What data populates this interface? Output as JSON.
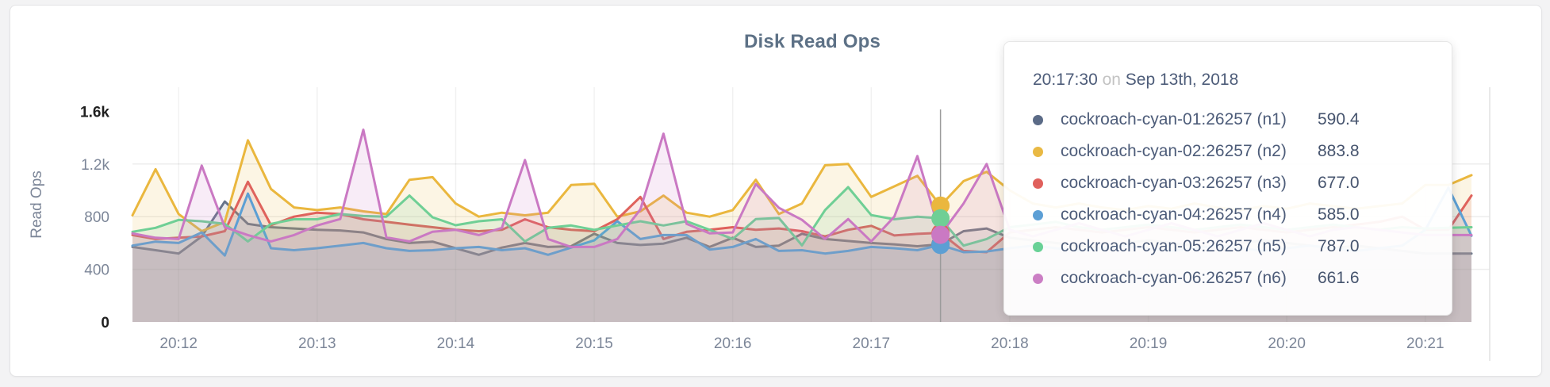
{
  "page": {
    "title": "Disk Read Ops"
  },
  "y_axis": {
    "label": "Read Ops",
    "ticks": [
      {
        "v": 0,
        "label": "0",
        "strong": true
      },
      {
        "v": 400,
        "label": "400",
        "strong": false
      },
      {
        "v": 800,
        "label": "800",
        "strong": false
      },
      {
        "v": 1200,
        "label": "1.2k",
        "strong": false
      },
      {
        "v": 1600,
        "label": "1.6k",
        "strong": true
      }
    ],
    "gridline_values": [
      400,
      800,
      1200
    ]
  },
  "x_axis": {
    "labels": [
      {
        "index": 2,
        "label": "20:12"
      },
      {
        "index": 8,
        "label": "20:13"
      },
      {
        "index": 14,
        "label": "20:14"
      },
      {
        "index": 20,
        "label": "20:15"
      },
      {
        "index": 26,
        "label": "20:16"
      },
      {
        "index": 32,
        "label": "20:17"
      },
      {
        "index": 38,
        "label": "20:18"
      },
      {
        "index": 44,
        "label": "20:19"
      },
      {
        "index": 50,
        "label": "20:20"
      },
      {
        "index": 56,
        "label": "20:21"
      }
    ]
  },
  "chart_data": {
    "type": "area",
    "title": "Disk Read Ops",
    "ylabel": "Read Ops",
    "ylim": [
      0,
      1783
    ],
    "grid": true,
    "start_time": "20:11:40",
    "interval_seconds": 10,
    "x_count": 59,
    "hover_index": 35,
    "hover_time": "20:17:30",
    "series": [
      {
        "id": "n1",
        "name": "cockroach-cyan-01:26257 (n1)",
        "color": "#67748a",
        "values": [
          570,
          545,
          520,
          650,
          915,
          745,
          720,
          710,
          700,
          695,
          680,
          630,
          600,
          610,
          560,
          510,
          565,
          600,
          570,
          575,
          670,
          600,
          585,
          595,
          640,
          570,
          640,
          570,
          580,
          670,
          630,
          615,
          600,
          590,
          575,
          590.4,
          690,
          710,
          640,
          620,
          600,
          580,
          560,
          600,
          620,
          600,
          580,
          560,
          600,
          620,
          600,
          580,
          560,
          580,
          560,
          540,
          520,
          520,
          520
        ]
      },
      {
        "id": "n2",
        "name": "cockroach-cyan-02:26257 (n2)",
        "color": "#eab73e",
        "values": [
          810,
          1160,
          820,
          690,
          760,
          1380,
          1010,
          870,
          850,
          870,
          840,
          820,
          1080,
          1100,
          900,
          800,
          830,
          810,
          830,
          1040,
          1050,
          800,
          840,
          960,
          830,
          800,
          850,
          1080,
          820,
          900,
          1190,
          1200,
          950,
          1030,
          1110,
          883.8,
          1070,
          1140,
          1000,
          900,
          870,
          900,
          870,
          850,
          880,
          860,
          900,
          870,
          850,
          880,
          860,
          900,
          880,
          860,
          880,
          900,
          1040,
          1040,
          1115
        ]
      },
      {
        "id": "n3",
        "name": "cockroach-cyan-03:26257 (n3)",
        "color": "#df625c",
        "values": [
          660,
          630,
          640,
          650,
          690,
          1065,
          735,
          800,
          830,
          820,
          780,
          760,
          740,
          720,
          700,
          690,
          700,
          780,
          720,
          700,
          690,
          780,
          950,
          630,
          685,
          700,
          720,
          700,
          710,
          690,
          650,
          700,
          730,
          657,
          669,
          677,
          540,
          530,
          680,
          700,
          720,
          700,
          680,
          700,
          720,
          700,
          680,
          700,
          720,
          700,
          680,
          700,
          720,
          740,
          760,
          800,
          700,
          700,
          960
        ]
      },
      {
        "id": "n4",
        "name": "cockroach-cyan-04:26257 (n4)",
        "color": "#5c9fd4",
        "values": [
          580,
          610,
          600,
          680,
          505,
          975,
          560,
          545,
          560,
          580,
          600,
          560,
          540,
          545,
          560,
          570,
          545,
          560,
          510,
          565,
          620,
          765,
          630,
          660,
          660,
          550,
          570,
          630,
          540,
          545,
          520,
          540,
          570,
          560,
          545,
          585,
          530,
          535,
          560,
          580,
          560,
          540,
          560,
          580,
          560,
          540,
          560,
          580,
          560,
          540,
          560,
          580,
          560,
          540,
          560,
          580,
          700,
          1020,
          655
        ]
      },
      {
        "id": "n5",
        "name": "cockroach-cyan-05:26257 (n5)",
        "color": "#6fcf95",
        "values": [
          685,
          715,
          775,
          765,
          745,
          612,
          745,
          780,
          780,
          820,
          805,
          800,
          960,
          795,
          735,
          765,
          780,
          612,
          715,
          733,
          700,
          733,
          765,
          733,
          765,
          700,
          630,
          782,
          790,
          582,
          850,
          1024,
          812,
          780,
          800,
          787,
          580,
          630,
          720,
          740,
          760,
          720,
          700,
          720,
          740,
          720,
          700,
          720,
          740,
          720,
          700,
          720,
          740,
          720,
          700,
          720,
          710,
          715,
          720
        ]
      },
      {
        "id": "n6",
        "name": "cockroach-cyan-06:26257 (n6)",
        "color": "#ca79c3",
        "values": [
          673,
          640,
          630,
          1188,
          720,
          660,
          612,
          660,
          733,
          782,
          1460,
          642,
          612,
          685,
          700,
          660,
          715,
          1230,
          630,
          570,
          570,
          630,
          855,
          1430,
          745,
          673,
          680,
          1048,
          867,
          776,
          630,
          782,
          612,
          800,
          1260,
          661.6,
          900,
          1200,
          700,
          650,
          700,
          750,
          700,
          650,
          700,
          750,
          700,
          650,
          700,
          750,
          700,
          650,
          700,
          720,
          700,
          680,
          660,
          660,
          660
        ]
      }
    ]
  },
  "tooltip": {
    "time": "20:17:30",
    "conjunction": "on",
    "date": "Sep 13th, 2018",
    "rows": [
      {
        "label": "cockroach-cyan-01:26257 (n1)",
        "value": "590.4",
        "color": "#5b6b87"
      },
      {
        "label": "cockroach-cyan-02:26257 (n2)",
        "value": "883.8",
        "color": "#e9b944"
      },
      {
        "label": "cockroach-cyan-03:26257 (n3)",
        "value": "677.0",
        "color": "#e0605c"
      },
      {
        "label": "cockroach-cyan-04:26257 (n4)",
        "value": "585.0",
        "color": "#5c9fd5"
      },
      {
        "label": "cockroach-cyan-05:26257 (n5)",
        "value": "787.0",
        "color": "#68d196"
      },
      {
        "label": "cockroach-cyan-06:26257 (n6)",
        "value": "661.6",
        "color": "#cb7ec4"
      }
    ]
  }
}
